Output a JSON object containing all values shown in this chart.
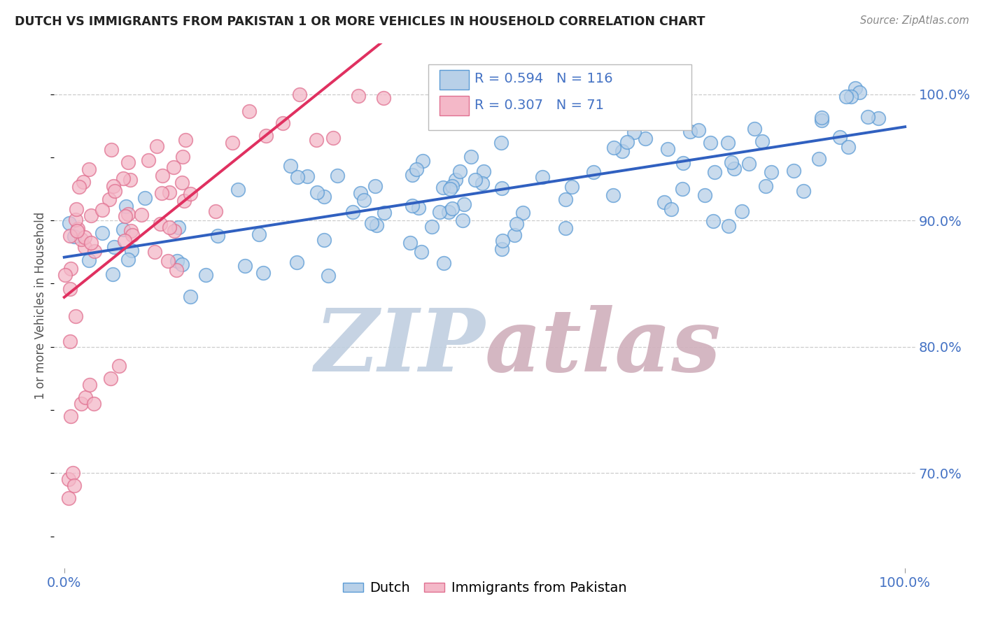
{
  "title": "DUTCH VS IMMIGRANTS FROM PAKISTAN 1 OR MORE VEHICLES IN HOUSEHOLD CORRELATION CHART",
  "source": "Source: ZipAtlas.com",
  "ylabel": "1 or more Vehicles in Household",
  "dutch_color": "#b8d0e8",
  "dutch_edge_color": "#5b9bd5",
  "pak_color": "#f4b8c8",
  "pak_edge_color": "#e07090",
  "trend_dutch_color": "#3060c0",
  "trend_pak_color": "#e03060",
  "R_dutch": 0.594,
  "N_dutch": 116,
  "R_pak": 0.307,
  "N_pak": 71,
  "background_color": "#ffffff",
  "watermark_zip_color": "#c0cfe0",
  "watermark_atlas_color": "#d0b0bc",
  "ylim_low": 0.625,
  "ylim_high": 1.04
}
